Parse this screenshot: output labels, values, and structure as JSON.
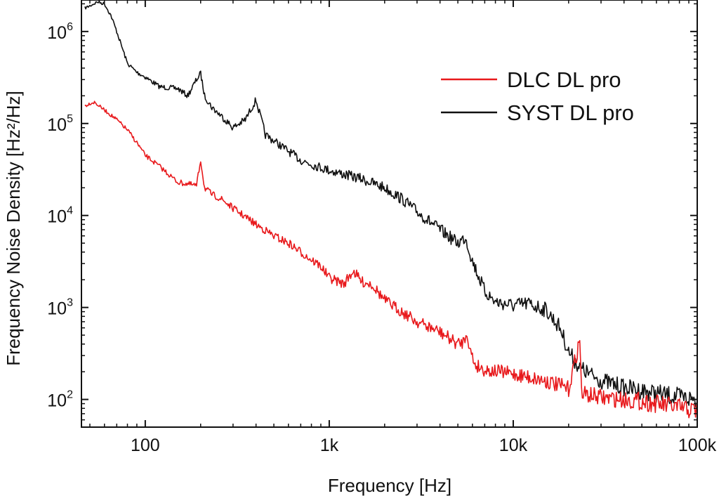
{
  "chart_data": {
    "type": "line",
    "xlabel": "Frequency [Hz]",
    "ylabel": "Frequency Noise Density [Hz²/Hz]",
    "xscale": "log",
    "yscale": "log",
    "xlim": [
      45,
      100000
    ],
    "ylim": [
      50,
      2200000
    ],
    "xticks": [
      {
        "value": 100,
        "label": "100"
      },
      {
        "value": 1000,
        "label": "1k"
      },
      {
        "value": 10000,
        "label": "10k"
      },
      {
        "value": 100000,
        "label": "100k"
      }
    ],
    "yticks": [
      {
        "value": 100,
        "base": "10",
        "exp": "2"
      },
      {
        "value": 1000,
        "base": "10",
        "exp": "3"
      },
      {
        "value": 10000,
        "base": "10",
        "exp": "4"
      },
      {
        "value": 100000,
        "base": "10",
        "exp": "5"
      },
      {
        "value": 1000000,
        "base": "10",
        "exp": "6"
      }
    ],
    "grid": false,
    "legend_position": "top-right",
    "series": [
      {
        "name": "DLC DL pro",
        "color": "#e8191c",
        "x": [
          47,
          50,
          53,
          55,
          60,
          70,
          80,
          90,
          100,
          120,
          150,
          170,
          190,
          200,
          210,
          230,
          260,
          300,
          400,
          500,
          600,
          700,
          800,
          900,
          1000,
          1200,
          1350,
          1500,
          1700,
          2000,
          3000,
          4000,
          5000,
          5400,
          5600,
          5800,
          6200,
          7000,
          10000,
          15000,
          20000,
          23000,
          23500,
          24000,
          30000,
          50000,
          70000,
          100000
        ],
        "y": [
          155000,
          165000,
          170000,
          160000,
          140000,
          110000,
          85000,
          62000,
          45000,
          34000,
          23000,
          22000,
          21000,
          40000,
          20000,
          17000,
          15000,
          12000,
          8000,
          6000,
          5000,
          4000,
          3300,
          2800,
          2100,
          1800,
          2500,
          1900,
          1800,
          1200,
          700,
          540,
          400,
          430,
          560,
          350,
          240,
          210,
          190,
          160,
          130,
          450,
          120,
          115,
          105,
          95,
          85,
          75
        ]
      },
      {
        "name": "SYST DL pro",
        "color": "#111111",
        "x": [
          47,
          50,
          55,
          60,
          65,
          70,
          80,
          90,
          100,
          120,
          150,
          170,
          190,
          200,
          210,
          230,
          260,
          300,
          350,
          380,
          400,
          450,
          500,
          600,
          700,
          800,
          1000,
          1200,
          1500,
          2000,
          2500,
          3000,
          4000,
          5000,
          5500,
          6000,
          7000,
          8000,
          10000,
          12000,
          15000,
          18000,
          20000,
          23000,
          27000,
          30000,
          40000,
          50000,
          70000,
          100000
        ],
        "y": [
          1800000,
          1900000,
          2100000,
          2000000,
          1500000,
          1000000,
          450000,
          360000,
          320000,
          250000,
          240000,
          200000,
          300000,
          350000,
          200000,
          150000,
          120000,
          90000,
          110000,
          150000,
          180000,
          75000,
          65000,
          50000,
          40000,
          36000,
          31000,
          28000,
          25000,
          20000,
          15000,
          11000,
          7000,
          5000,
          5800,
          3200,
          1500,
          1150,
          1050,
          1100,
          950,
          600,
          330,
          220,
          180,
          160,
          135,
          125,
          110,
          100
        ]
      }
    ]
  }
}
